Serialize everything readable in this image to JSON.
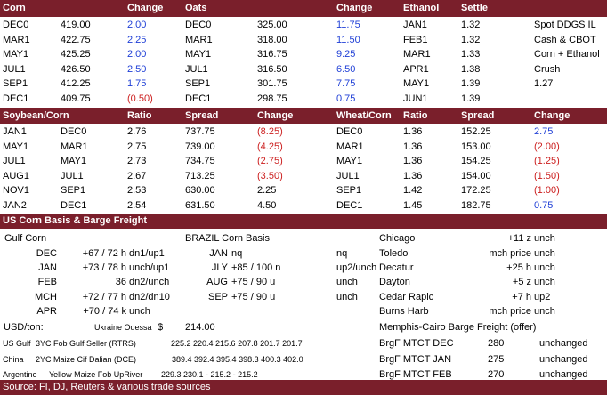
{
  "band1": {
    "h": [
      "Corn",
      "Change",
      "Oats",
      "Change",
      "Ethanol",
      "Settle"
    ]
  },
  "corn_rows": [
    {
      "c1": "DEC0",
      "c2": "419.00",
      "c3": "2.00",
      "c3c": "blue",
      "c4": "DEC0",
      "c5": "325.00",
      "c6": "11.75",
      "c6c": "blue",
      "c7": "JAN1",
      "c8": "1.32",
      "c9": "Spot DDGS IL"
    },
    {
      "c1": "MAR1",
      "c2": "422.75",
      "c3": "2.25",
      "c3c": "blue",
      "c4": "MAR1",
      "c5": "318.00",
      "c6": "11.50",
      "c6c": "blue",
      "c7": "FEB1",
      "c8": "1.32",
      "c9": "Cash & CBOT"
    },
    {
      "c1": "MAY1",
      "c2": "425.25",
      "c3": "2.00",
      "c3c": "blue",
      "c4": "MAY1",
      "c5": "316.75",
      "c6": "9.25",
      "c6c": "blue",
      "c7": "MAR1",
      "c8": "1.33",
      "c9": "Corn + Ethanol"
    },
    {
      "c1": "JUL1",
      "c2": "426.50",
      "c3": "2.50",
      "c3c": "blue",
      "c4": "JUL1",
      "c5": "316.50",
      "c6": "6.50",
      "c6c": "blue",
      "c7": "APR1",
      "c8": "1.38",
      "c9": "Crush"
    },
    {
      "c1": "SEP1",
      "c2": "412.25",
      "c3": "1.75",
      "c3c": "blue",
      "c4": "SEP1",
      "c5": "301.75",
      "c6": "7.75",
      "c6c": "blue",
      "c7": "MAY1",
      "c8": "1.39",
      "c9": "1.27"
    },
    {
      "c1": "DEC1",
      "c2": "409.75",
      "c3": "(0.50)",
      "c3c": "red",
      "c4": "DEC1",
      "c5": "298.75",
      "c6": "0.75",
      "c6c": "blue",
      "c7": "JUN1",
      "c8": "1.39",
      "c9": ""
    }
  ],
  "band2": {
    "h": [
      "Soybean/Corn",
      "Ratio",
      "Spread",
      "Change",
      "Wheat/Corn",
      "Ratio",
      "Spread",
      "Change"
    ]
  },
  "ratio_rows": [
    {
      "a": "JAN1",
      "b": "DEC0",
      "r": "2.76",
      "s": "737.75",
      "ch": "(8.25)",
      "chc": "red",
      "a2": "DEC0",
      "r2": "1.36",
      "s2": "152.25",
      "ch2": "2.75",
      "ch2c": "blue"
    },
    {
      "a": "MAY1",
      "b": "MAR1",
      "r": "2.75",
      "s": "739.00",
      "ch": "(4.25)",
      "chc": "red",
      "a2": "MAR1",
      "r2": "1.36",
      "s2": "153.00",
      "ch2": "(2.00)",
      "ch2c": "red"
    },
    {
      "a": "JUL1",
      "b": "MAY1",
      "r": "2.73",
      "s": "734.75",
      "ch": "(2.75)",
      "chc": "red",
      "a2": "MAY1",
      "r2": "1.36",
      "s2": "154.25",
      "ch2": "(1.25)",
      "ch2c": "red"
    },
    {
      "a": "AUG1",
      "b": "JUL1",
      "r": "2.67",
      "s": "713.25",
      "ch": "(3.50)",
      "chc": "red",
      "a2": "JUL1",
      "r2": "1.36",
      "s2": "154.00",
      "ch2": "(1.50)",
      "ch2c": "red"
    },
    {
      "a": "NOV1",
      "b": "SEP1",
      "r": "2.53",
      "s": "630.00",
      "ch": "2.25",
      "chc": "black",
      "a2": "SEP1",
      "r2": "1.42",
      "s2": "172.25",
      "ch2": "(1.00)",
      "ch2c": "red"
    },
    {
      "a": "JAN2",
      "b": "DEC1",
      "r": "2.54",
      "s": "631.50",
      "ch": "4.50",
      "chc": "black",
      "a2": "DEC1",
      "r2": "1.45",
      "s2": "182.75",
      "ch2": "0.75",
      "ch2c": "blue"
    }
  ],
  "band3": {
    "title": "US Corn Basis & Barge Freight"
  },
  "basis": {
    "gulf_title": "Gulf Corn",
    "brazil_title": "BRAZIL Corn Basis",
    "gulf": [
      {
        "m": "DEC",
        "v": "+67 / 72 h",
        "c": "dn1/up1"
      },
      {
        "m": "JAN",
        "v": "+73 / 78 h",
        "c": "unch/up1"
      },
      {
        "m": "FEB",
        "v": "36",
        "c": "dn2/unch"
      },
      {
        "m": "MCH",
        "v": "+72 / 77 h",
        "c": "dn2/dn10"
      },
      {
        "m": "APR",
        "v": "+70 / 74 k",
        "c": "unch"
      }
    ],
    "brazil": [
      {
        "m": "JAN",
        "v": "nq",
        "c": "nq"
      },
      {
        "m": "JLY",
        "v": "+85 / 100 n",
        "c": "up2/unch"
      },
      {
        "m": "AUG",
        "v": "+75 / 90 u",
        "c": "unch"
      },
      {
        "m": "SEP",
        "v": "+75 / 90 u",
        "c": "unch"
      }
    ],
    "interior": [
      {
        "n": "Chicago",
        "v": "+11 z",
        "c": "unch"
      },
      {
        "n": "Toledo",
        "v": "mch price",
        "c": "unch"
      },
      {
        "n": "Decatur",
        "v": "+25 h",
        "c": "unch"
      },
      {
        "n": "Dayton",
        "v": "+5 z",
        "c": "unch"
      },
      {
        "n": "Cedar Rapic",
        "v": "+7 h",
        "c": "up2"
      },
      {
        "n": "Burns Harb",
        "v": "mch price",
        "c": "unch"
      }
    ]
  },
  "usd": {
    "label": "USD/ton:",
    "odessa_label": "Ukraine Odessa",
    "dollar": "$",
    "odessa_val": "214.00"
  },
  "fob": [
    {
      "origin": "US Gulf",
      "desc": "3YC Fob Gulf Seller (RTRS)",
      "vals": "225.2  220.4  215.6  207.8  201.7  201.7"
    },
    {
      "origin": "China",
      "desc": "2YC Maize Cif Dalian (DCE)",
      "vals": "389.4  392.4  395.4  398.3  400.3  402.0"
    },
    {
      "origin": "Argentine",
      "desc": "Yellow Maize Fob UpRiver",
      "vals": "229.3  230.1   -   215.2   -   215.2"
    }
  ],
  "barge": {
    "title": "Memphis-Cairo Barge Freight (offer)",
    "rows": [
      {
        "n": "BrgF MTCT DEC",
        "v": "280",
        "c": "unchanged"
      },
      {
        "n": "BrgF MTCT JAN",
        "v": "275",
        "c": "unchanged"
      },
      {
        "n": "BrgF MTCT FEB",
        "v": "270",
        "c": "unchanged"
      }
    ]
  },
  "source": "Source: FI, DJ, Reuters & various trade sources",
  "colors": {
    "band": "#7a1f2b",
    "positive": "#1f3fd6",
    "negative": "#cc1f1f"
  }
}
